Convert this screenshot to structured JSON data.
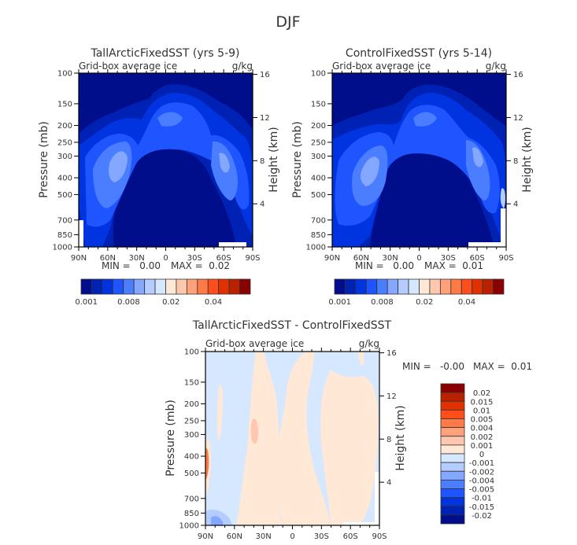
{
  "figure": {
    "season_title": "DJF"
  },
  "chart_data": [
    {
      "type": "heatmap",
      "panel": "top-left",
      "title": "TallArcticFixedSST (yrs 5-9)",
      "subtitle_left": "Grid-box average ice",
      "subtitle_right": "g/kg",
      "ylabel": "Pressure (mb)",
      "ylabel_right": "Height (km)",
      "xlabel": "",
      "x_ticks": [
        "90N",
        "60N",
        "30N",
        "0",
        "30S",
        "60S",
        "90S"
      ],
      "x_range": [
        90,
        -90
      ],
      "y_ticks": [
        "100",
        "150",
        "200",
        "250",
        "300",
        "400",
        "500",
        "700",
        "850",
        "1000"
      ],
      "y_tick_values": [
        100,
        150,
        200,
        250,
        300,
        400,
        500,
        700,
        850,
        1000
      ],
      "y_range": [
        100,
        1000
      ],
      "y2_ticks": [
        "16",
        "12",
        "8",
        "4"
      ],
      "y2_tick_values": [
        16,
        12,
        8,
        4
      ],
      "stats": {
        "min_label": "MIN =",
        "min_value": "0.00",
        "max_label": "MAX =",
        "max_value": "0.02"
      },
      "colorbar": {
        "orientation": "horizontal",
        "labels": [
          "0.001",
          "0.008",
          "0.02",
          "0.04"
        ],
        "colors": [
          "#000e8c",
          "#0022b4",
          "#0034e0",
          "#1f55ff",
          "#4a7dff",
          "#84a8ff",
          "#b4ccff",
          "#d5e8ff",
          "#ffe8d5",
          "#ffc8ae",
          "#ffa27b",
          "#ff7a45",
          "#ff4d1c",
          "#e23100",
          "#b82200",
          "#8b0000"
        ]
      },
      "description": "Ice maximum in an arch: upper troposphere 200-400 mb over equator, descending to 500-700 mb in midlatitudes (~45N, ~45S) and near surface at the poles; near-zero below 400 mb between 30N and 30S."
    },
    {
      "type": "heatmap",
      "panel": "top-right",
      "title": "ControlFixedSST (yrs 5-14)",
      "subtitle_left": "Grid-box average ice",
      "subtitle_right": "g/kg",
      "ylabel": "Pressure (mb)",
      "ylabel_right": "Height (km)",
      "xlabel": "",
      "x_ticks": [
        "90N",
        "60N",
        "30N",
        "0",
        "30S",
        "60S",
        "90S"
      ],
      "x_range": [
        90,
        -90
      ],
      "y_ticks": [
        "100",
        "150",
        "200",
        "250",
        "300",
        "400",
        "500",
        "700",
        "850",
        "1000"
      ],
      "y_tick_values": [
        100,
        150,
        200,
        250,
        300,
        400,
        500,
        700,
        850,
        1000
      ],
      "y_range": [
        100,
        1000
      ],
      "y2_ticks": [
        "16",
        "12",
        "8",
        "4"
      ],
      "y2_tick_values": [
        16,
        12,
        8,
        4
      ],
      "stats": {
        "min_label": "MIN =",
        "min_value": "0.00",
        "max_label": "MAX =",
        "max_value": "0.01"
      },
      "colorbar": {
        "orientation": "horizontal",
        "labels": [
          "0.001",
          "0.008",
          "0.02",
          "0.04"
        ],
        "colors": [
          "#000e8c",
          "#0022b4",
          "#0034e0",
          "#1f55ff",
          "#4a7dff",
          "#84a8ff",
          "#b4ccff",
          "#d5e8ff",
          "#ffe8d5",
          "#ffc8ae",
          "#ffa27b",
          "#ff7a45",
          "#ff4d1c",
          "#e23100",
          "#b82200",
          "#8b0000"
        ]
      },
      "description": "Same arch-shaped ice distribution as the TallArctic run, with a slightly weaker NH midlatitude maximum."
    },
    {
      "type": "heatmap",
      "panel": "bottom",
      "title": "TallArcticFixedSST - ControlFixedSST",
      "subtitle_left": "Grid-box average ice",
      "subtitle_right": "g/kg",
      "ylabel": "Pressure (mb)",
      "ylabel_right": "Height (km)",
      "xlabel": "",
      "x_ticks": [
        "90N",
        "60N",
        "30N",
        "0",
        "30S",
        "60S",
        "90S"
      ],
      "x_range": [
        90,
        -90
      ],
      "y_ticks": [
        "100",
        "150",
        "200",
        "250",
        "300",
        "400",
        "500",
        "700",
        "850",
        "1000"
      ],
      "y_tick_values": [
        100,
        150,
        200,
        250,
        300,
        400,
        500,
        700,
        850,
        1000
      ],
      "y_range": [
        100,
        1000
      ],
      "y2_ticks": [
        "16",
        "12",
        "8",
        "4"
      ],
      "y2_tick_values": [
        16,
        12,
        8,
        4
      ],
      "stats": {
        "min_label": "MIN =",
        "min_value": "-0.00",
        "max_label": "MAX =",
        "max_value": "0.01"
      },
      "colorbar": {
        "orientation": "vertical",
        "labels": [
          "0.02",
          "0.015",
          "0.01",
          "0.005",
          "0.004",
          "0.002",
          "0.001",
          "0",
          "-0.001",
          "-0.002",
          "-0.004",
          "-0.005",
          "-0.01",
          "-0.015",
          "-0.02"
        ],
        "colors": [
          "#8b0000",
          "#b82200",
          "#e23100",
          "#ff4d1c",
          "#ff7a45",
          "#ffa27b",
          "#ffc8ae",
          "#ffe8d5",
          "#d5e8ff",
          "#b4ccff",
          "#84a8ff",
          "#4a7dff",
          "#1f55ff",
          "#0034e0",
          "#0022b4",
          "#000e8c"
        ]
      },
      "description": "Small differences: mostly between -0.001 and +0.001; positive at ~35N 400-500 mb and near 90N 650-750 mb, negative pockets near 80N surface."
    }
  ]
}
